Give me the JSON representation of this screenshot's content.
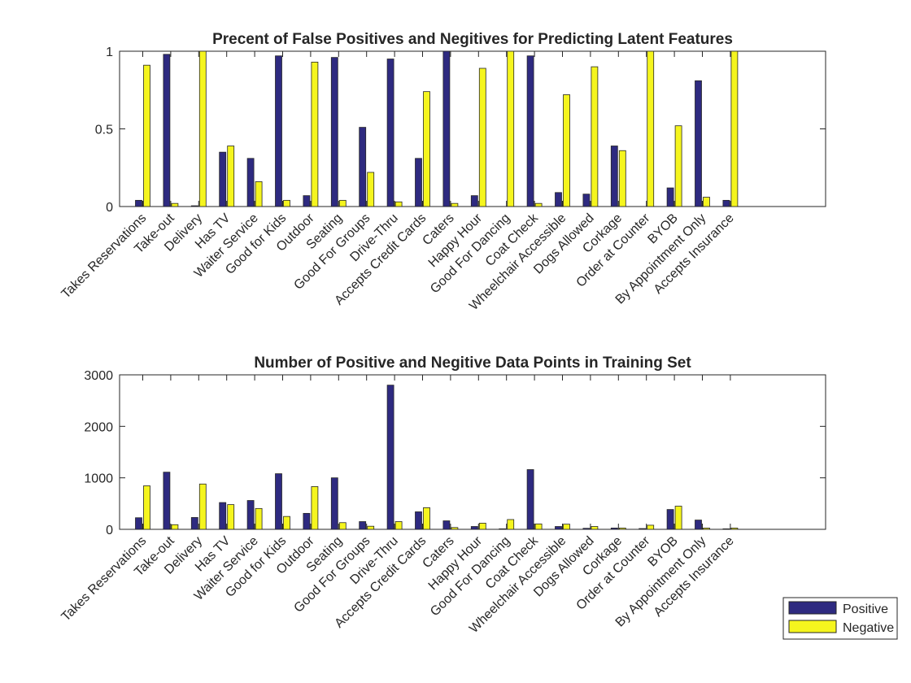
{
  "colors": {
    "positive": "#2e2a80",
    "negative": "#f5f51e",
    "axis": "#262626"
  },
  "legend": {
    "placement": "bottom-right",
    "entries": [
      "Positive",
      "Negative"
    ]
  },
  "chart_data": [
    {
      "type": "bar",
      "title": "Precent of False Positives and Negitives for Predicting Latent Features",
      "xlabel": "",
      "ylabel": "",
      "ylim": [
        0,
        1
      ],
      "yticks": [
        0,
        0.5,
        1
      ],
      "ytick_labels": [
        "0",
        "0.5",
        "1"
      ],
      "categories": [
        "Takes Reservations",
        "Take-out",
        "Delivery",
        "Has TV",
        "Waiter Service",
        "Good for Kids",
        "Outdoor",
        "Seating",
        "Good For Groups",
        "Drive-Thru",
        "Accepts Credit Cards",
        "Caters",
        "Happy Hour",
        "Good For Dancing",
        "Coat Check",
        "Wheelchair Accessible",
        "Dogs Allowed",
        "Corkage",
        "Order at Counter",
        "BYOB",
        "By Appointment Only",
        "Accepts Insurance"
      ],
      "series": [
        {
          "name": "Positive",
          "values": [
            0.04,
            0.98,
            0.005,
            0.35,
            0.31,
            0.97,
            0.07,
            0.96,
            0.51,
            0.95,
            0.31,
            1.0,
            0.07,
            0.0,
            0.97,
            0.09,
            0.08,
            0.39,
            0.0,
            0.12,
            0.81,
            0.04
          ]
        },
        {
          "name": "Negative",
          "values": [
            0.91,
            0.02,
            1.0,
            0.39,
            0.16,
            0.04,
            0.93,
            0.04,
            0.22,
            0.03,
            0.74,
            0.02,
            0.89,
            1.0,
            0.02,
            0.72,
            0.9,
            0.36,
            1.0,
            0.52,
            0.06,
            1.0
          ]
        }
      ],
      "grid": false
    },
    {
      "type": "bar",
      "title": "Number of Positive and Negitive Data Points in Training Set",
      "xlabel": "",
      "ylabel": "",
      "ylim": [
        0,
        3000
      ],
      "yticks": [
        0,
        1000,
        2000,
        3000
      ],
      "ytick_labels": [
        "0",
        "1000",
        "2000",
        "3000"
      ],
      "categories": [
        "Takes Reservations",
        "Take-out",
        "Delivery",
        "Has TV",
        "Waiter Service",
        "Good for Kids",
        "Outdoor",
        "Seating",
        "Good For Groups",
        "Drive-Thru",
        "Accepts Credit Cards",
        "Caters",
        "Happy Hour",
        "Good For Dancing",
        "Coat Check",
        "Wheelchair Accessible",
        "Dogs Allowed",
        "Corkage",
        "Order at Counter",
        "BYOB",
        "By Appointment Only",
        "Accepts Insurance"
      ],
      "series": [
        {
          "name": "Positive",
          "values": [
            225,
            1110,
            230,
            520,
            560,
            1080,
            310,
            1000,
            150,
            2800,
            340,
            165,
            55,
            10,
            1160,
            55,
            20,
            25,
            15,
            385,
            180,
            10
          ]
        },
        {
          "name": "Negative",
          "values": [
            845,
            90,
            880,
            480,
            405,
            250,
            830,
            130,
            60,
            150,
            420,
            35,
            120,
            190,
            105,
            100,
            55,
            25,
            80,
            450,
            25,
            25
          ]
        }
      ],
      "grid": false
    }
  ]
}
